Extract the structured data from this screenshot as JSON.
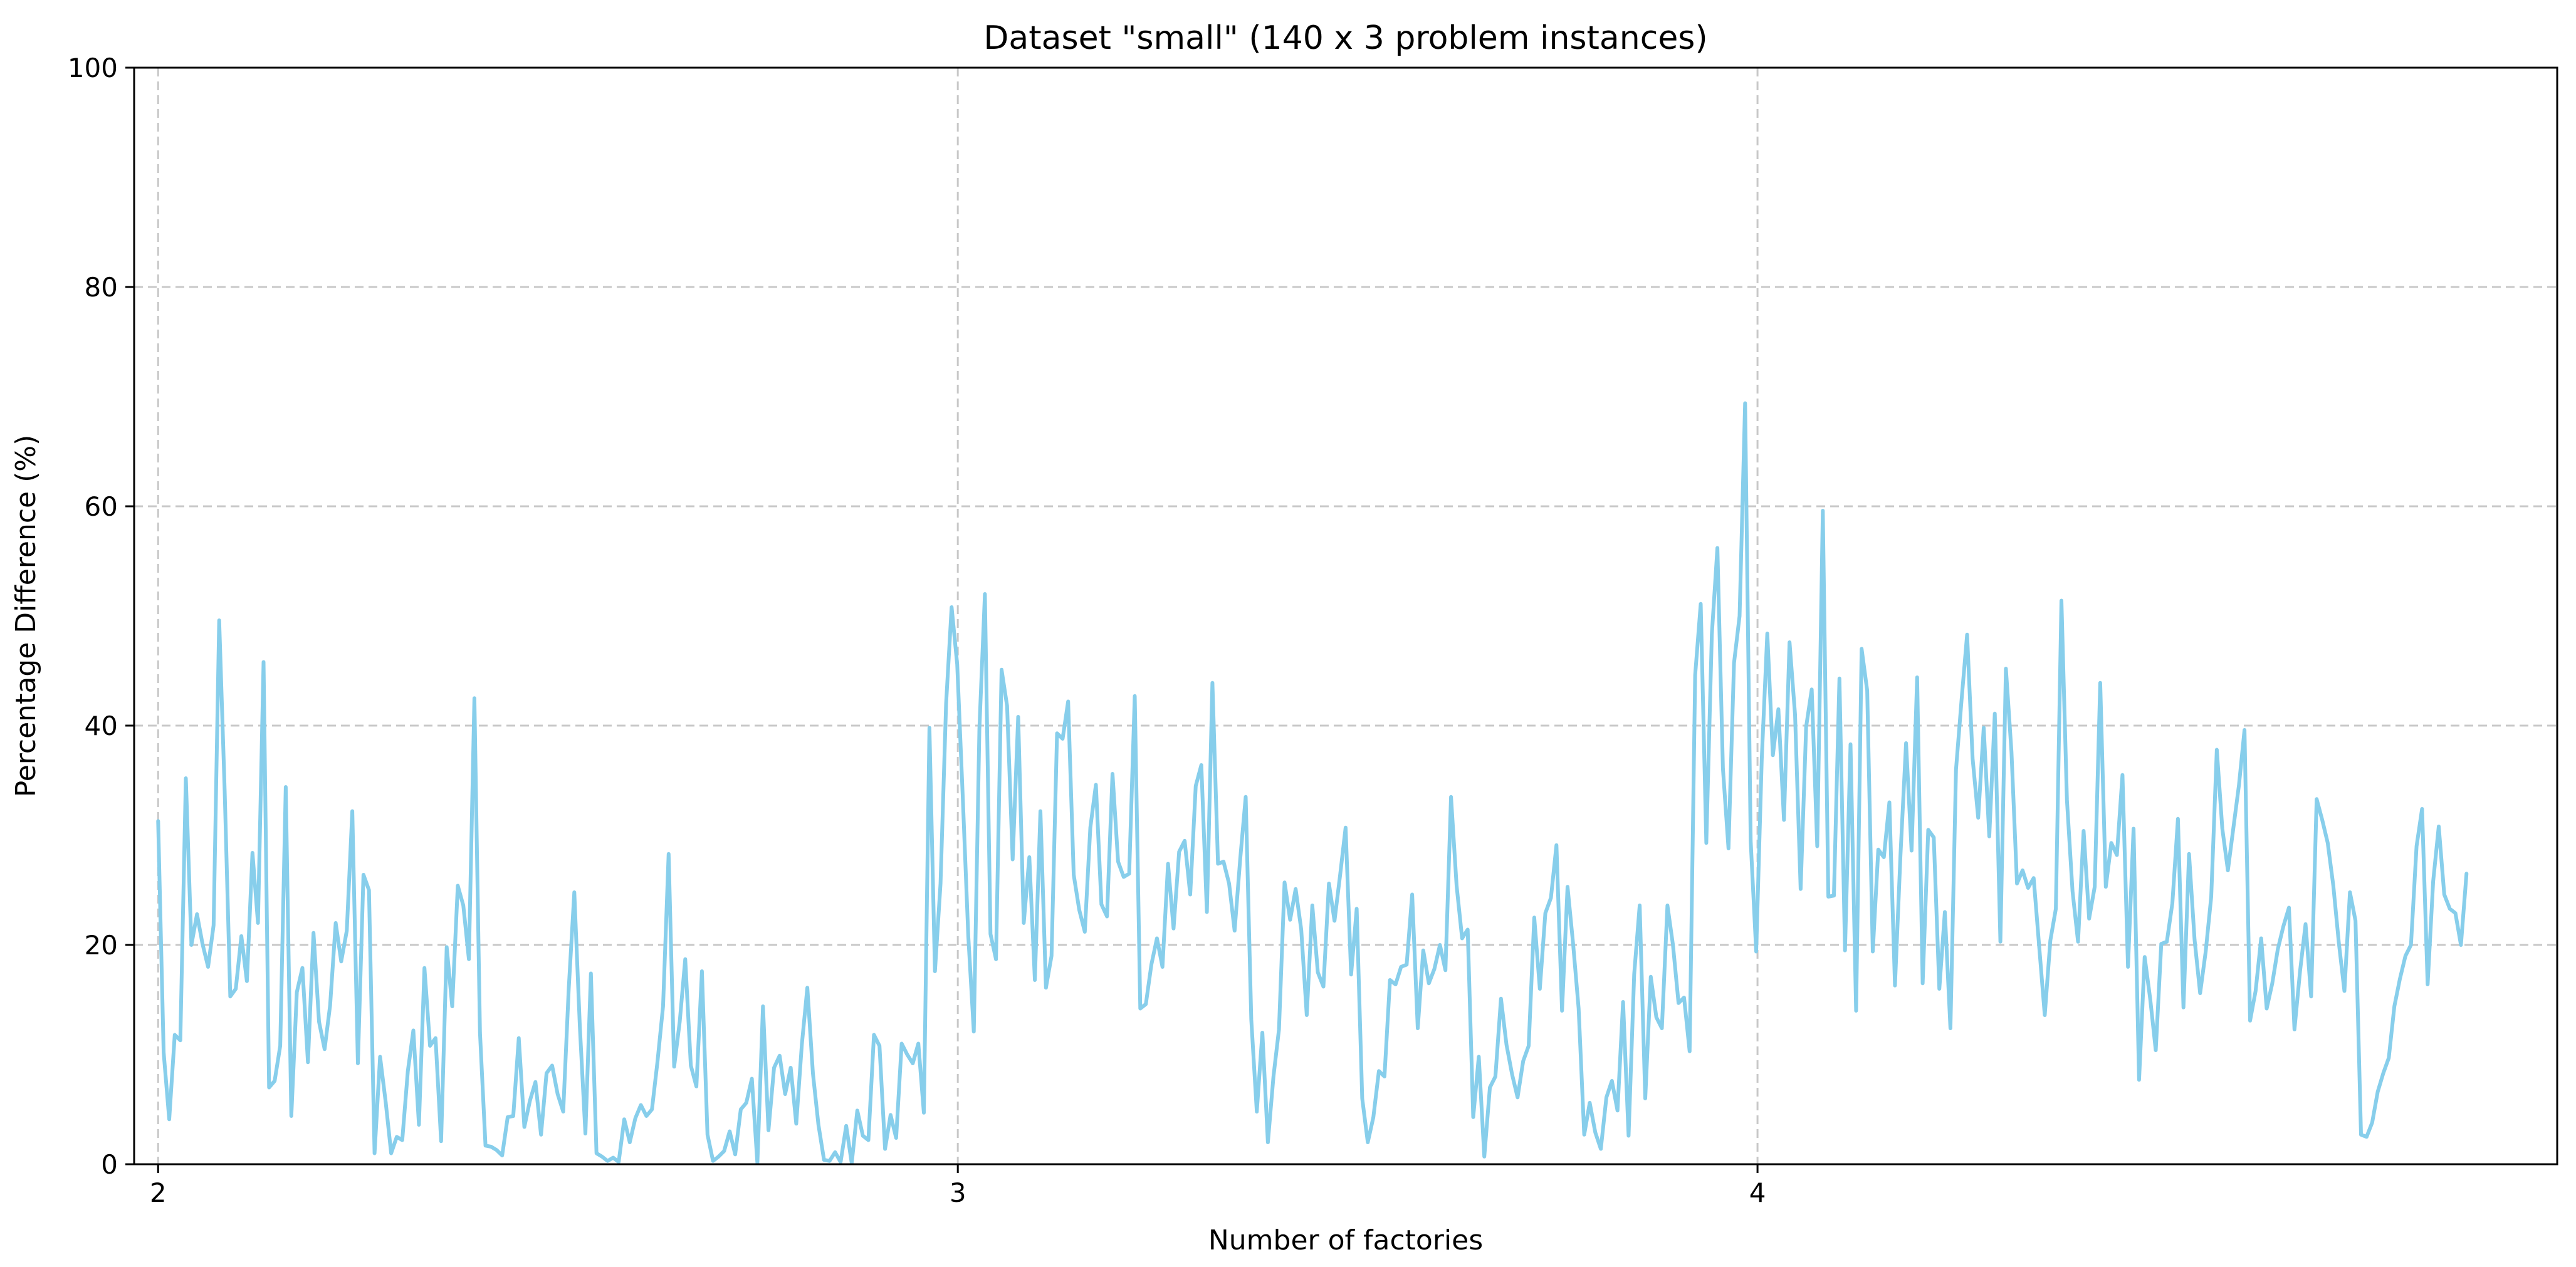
{
  "chart_data": {
    "type": "line",
    "title": "Dataset \"small\" (140 x 3 problem instances)",
    "xlabel": "Number of factories",
    "ylabel": "Percentage Difference (%)",
    "xlim": [
      1.97,
      5.0
    ],
    "ylim": [
      0,
      100
    ],
    "xticks": [
      2,
      3,
      4
    ],
    "xtick_labels": [
      "2",
      "3",
      "4"
    ],
    "yticks": [
      0,
      20,
      40,
      60,
      80,
      100
    ],
    "ytick_labels": [
      "0",
      "20",
      "40",
      "60",
      "80",
      "100"
    ],
    "grid": true,
    "legend": "none",
    "series": [
      {
        "color": "#87ceeb",
        "values": [
          31.3,
          10.2,
          4.1,
          11.8,
          11.3,
          35.2,
          20.0,
          22.8,
          20.1,
          18.0,
          21.8,
          49.6,
          34.0,
          15.3,
          16.0,
          20.8,
          16.7,
          28.4,
          22.0,
          45.8,
          7.0,
          7.6,
          10.8,
          34.4,
          4.4,
          15.7,
          17.9,
          9.3,
          21.1,
          13.0,
          10.5,
          14.5,
          22.0,
          18.5,
          21.3,
          32.2,
          9.2,
          26.4,
          25.0,
          1.0,
          9.8,
          5.7,
          1.0,
          2.5,
          2.2,
          8.5,
          12.2,
          3.6,
          17.9,
          10.8,
          11.5,
          2.1,
          19.8,
          14.4,
          25.4,
          23.6,
          18.7,
          42.5,
          12.0,
          1.7,
          1.6,
          1.3,
          0.8,
          4.3,
          4.4,
          11.5,
          3.4,
          5.8,
          7.5,
          2.7,
          8.3,
          9.0,
          6.4,
          4.8,
          16.0,
          24.8,
          12.6,
          2.8,
          17.4,
          1.0,
          0.7,
          0.3,
          0.6,
          0.2,
          4.1,
          2.0,
          4.2,
          5.4,
          4.4,
          5.0,
          9.4,
          14.4,
          28.3,
          8.9,
          13.0,
          18.7,
          9.0,
          7.1,
          17.6,
          2.7,
          0.3,
          0.7,
          1.2,
          3.0,
          0.9,
          5.0,
          5.6,
          7.8,
          0.1,
          14.4,
          3.1,
          8.8,
          9.9,
          6.4,
          8.8,
          3.7,
          10.9,
          16.1,
          8.3,
          3.6,
          0.4,
          0.3,
          1.1,
          0.2,
          3.5,
          0.1,
          4.9,
          2.6,
          2.2,
          11.8,
          10.8,
          1.4,
          4.5,
          2.4,
          11.0,
          10.0,
          9.2,
          11.0,
          4.7,
          39.8,
          17.6,
          25.6,
          42.0,
          50.8,
          45.6,
          33.6,
          20.8,
          12.1,
          39.7,
          52.0,
          21.0,
          18.7,
          45.1,
          41.8,
          27.8,
          40.8,
          22.0,
          28.0,
          16.8,
          32.2,
          16.1,
          19.0,
          39.3,
          38.8,
          42.2,
          26.4,
          23.2,
          21.2,
          30.7,
          34.6,
          23.7,
          22.6,
          35.6,
          27.6,
          26.2,
          26.5,
          42.7,
          14.2,
          14.6,
          18.2,
          20.6,
          18.0,
          27.4,
          21.5,
          28.5,
          29.5,
          24.6,
          34.5,
          36.4,
          23.0,
          43.9,
          27.4,
          27.6,
          25.6,
          21.3,
          27.8,
          33.5,
          13.2,
          4.8,
          12.0,
          2.0,
          8.0,
          12.3,
          25.7,
          22.3,
          25.1,
          21.4,
          13.6,
          23.6,
          17.5,
          16.2,
          25.6,
          22.2,
          26.3,
          30.7,
          17.3,
          23.3,
          6.0,
          2.0,
          4.3,
          8.5,
          8.0,
          16.8,
          16.4,
          18.0,
          18.2,
          24.6,
          12.4,
          19.5,
          16.5,
          17.8,
          20.0,
          17.7,
          33.5,
          25.4,
          20.6,
          21.4,
          4.3,
          9.8,
          0.7,
          7.0,
          8.0,
          15.1,
          10.9,
          8.2,
          6.1,
          9.4,
          10.8,
          22.5,
          16.0,
          22.9,
          24.3,
          29.1,
          14.0,
          25.3,
          20.1,
          14.2,
          2.7,
          5.6,
          2.9,
          1.4,
          6.1,
          7.6,
          4.9,
          14.8,
          2.6,
          17.3,
          23.6,
          6.0,
          17.1,
          13.4,
          12.4,
          23.6,
          20.0,
          14.7,
          15.2,
          10.3,
          44.6,
          51.1,
          29.3,
          48.3,
          56.2,
          36.1,
          28.8,
          45.7,
          50.0,
          69.4,
          29.5,
          19.4,
          37.0,
          48.4,
          37.3,
          41.5,
          31.4,
          47.6,
          41.0,
          25.1,
          39.9,
          43.3,
          29.0,
          59.6,
          24.4,
          24.5,
          44.3,
          19.5,
          38.3,
          14.0,
          47.0,
          43.2,
          19.4,
          28.7,
          28.0,
          33.0,
          16.3,
          28.2,
          38.4,
          28.6,
          44.4,
          16.5,
          30.5,
          29.8,
          16.0,
          23.0,
          12.4,
          36.0,
          42.3,
          48.3,
          37.0,
          31.6,
          39.8,
          29.9,
          41.1,
          20.3,
          45.2,
          37.6,
          25.6,
          26.8,
          25.2,
          26.1,
          19.8,
          13.6,
          20.4,
          23.3,
          51.4,
          33.2,
          24.9,
          20.3,
          30.4,
          22.4,
          25.3,
          43.9,
          25.3,
          29.3,
          28.2,
          35.5,
          18.0,
          30.6,
          7.7,
          18.9,
          15.1,
          10.4,
          20.1,
          20.3,
          23.8,
          31.5,
          14.3,
          28.3,
          20.5,
          15.6,
          19.4,
          24.4,
          37.8,
          30.6,
          26.8,
          30.7,
          34.6,
          39.6,
          13.1,
          15.8,
          20.6,
          14.2,
          16.5,
          19.6,
          21.7,
          23.4,
          12.3,
          17.6,
          21.9,
          15.3,
          33.3,
          31.4,
          29.3,
          25.4,
          20.2,
          15.8,
          24.8,
          22.2,
          2.7,
          2.5,
          3.8,
          6.6,
          8.3,
          9.7,
          14.4,
          16.9,
          19.0,
          20.0,
          29.0,
          32.4,
          16.4,
          25.8,
          30.8,
          24.6,
          23.3,
          22.9,
          20.0,
          26.5
        ]
      }
    ]
  }
}
